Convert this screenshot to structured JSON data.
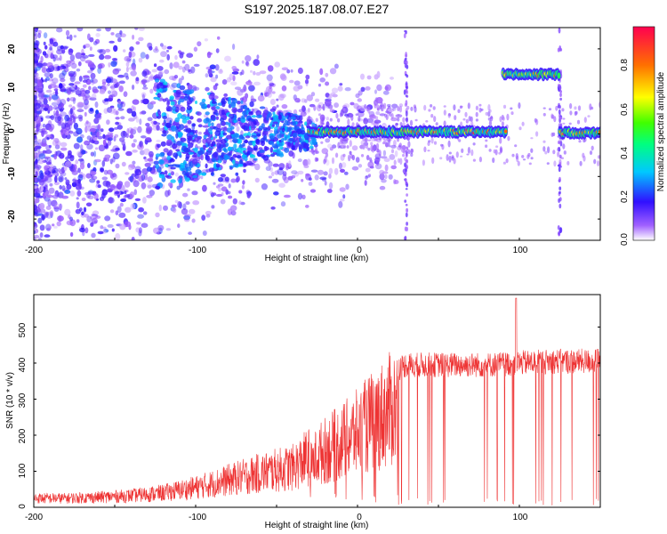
{
  "title": "S197.2025.187.08.07.E27",
  "chart_data": [
    {
      "type": "heatmap",
      "xlabel": "Height of straight line (km)",
      "ylabel": "Frequency (Hz)",
      "xlim": [
        -200,
        150
      ],
      "ylim": [
        -25,
        25
      ],
      "xticks": [
        "-200",
        "-100",
        "0",
        "100"
      ],
      "yticks": [
        "20",
        "10",
        "0",
        "-10",
        "-20"
      ],
      "grid": false,
      "colorbar": {
        "label": "Normalized spectral amplitude",
        "ticks": [
          "0.8",
          "0.6",
          "0.4",
          "0.2",
          "0.0"
        ],
        "range": [
          0,
          1
        ]
      },
      "ridge": [
        {
          "x_start": -30,
          "x_end": 92,
          "freq": 0.5,
          "amp": 0.85
        },
        {
          "x_start": 90,
          "x_end": 125,
          "freq": 14,
          "amp": 0.75
        },
        {
          "x_start": 125,
          "x_end": 150,
          "freq": 0.3,
          "amp": 0.8
        }
      ],
      "vertical_streaks_x": [
        30,
        125
      ]
    },
    {
      "type": "line",
      "xlabel": "Height of straight line (km)",
      "ylabel": "SNR (10 * v/v)",
      "xlim": [
        -200,
        150
      ],
      "ylim": [
        0,
        590
      ],
      "xticks": [
        "-200",
        "-100",
        "0",
        "100"
      ],
      "yticks": [
        "500",
        "400",
        "300",
        "200",
        "100",
        "0"
      ],
      "grid": false,
      "color": "#ee3333",
      "envelope": {
        "x": [
          -200,
          -180,
          -160,
          -140,
          -120,
          -100,
          -80,
          -60,
          -40,
          -30,
          -25,
          -20,
          -10,
          0,
          10,
          20,
          25,
          30,
          50,
          80,
          100,
          120,
          150
        ],
        "y": [
          25,
          25,
          28,
          32,
          40,
          55,
          75,
          95,
          110,
          140,
          190,
          210,
          240,
          275,
          320,
          360,
          380,
          390,
          390,
          390,
          395,
          400,
          400
        ]
      },
      "peak": {
        "x": 98,
        "y": 580
      }
    }
  ]
}
